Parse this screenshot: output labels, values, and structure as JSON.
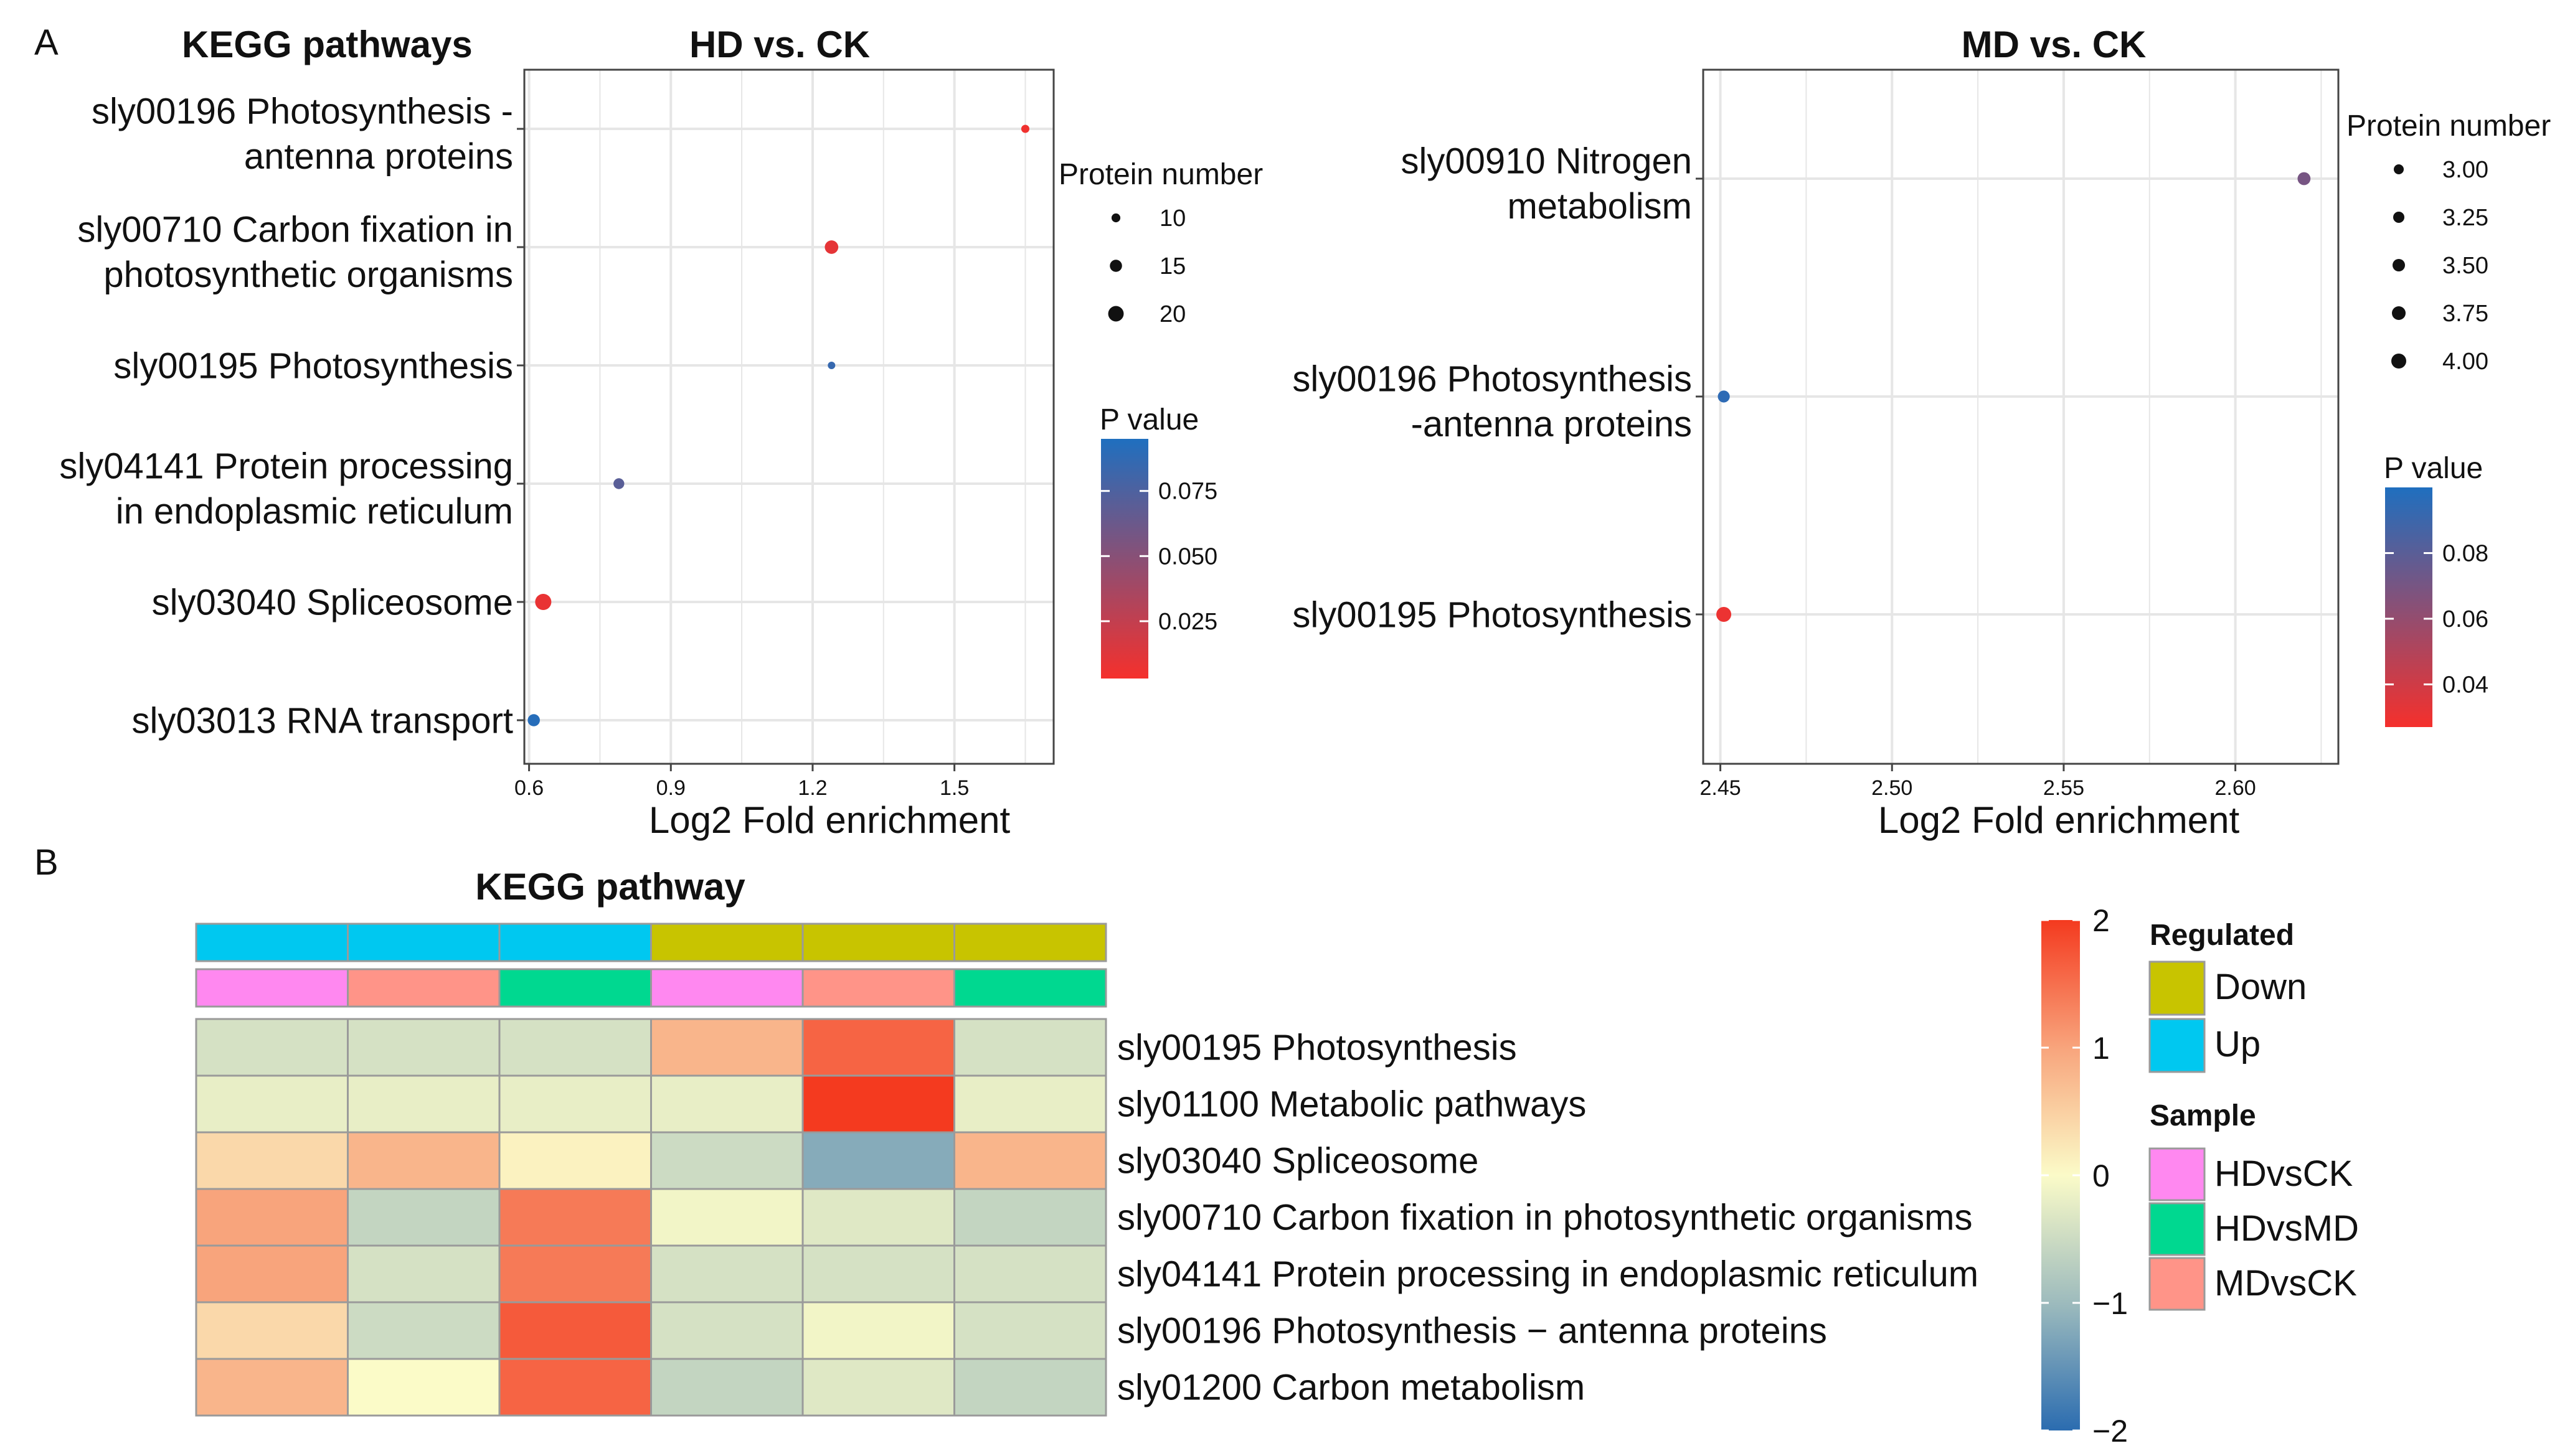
{
  "colors": {
    "p_low": "#f5302c",
    "p_high": "#1f6fbf",
    "heat_low": "#2b6cb0",
    "heat_mid": "#fbfbc8",
    "heat_high": "#f43a1f",
    "regulated_down": "#c8c400",
    "regulated_up": "#00c8f0",
    "sample_hdvsck": "#ff88f0",
    "sample_hdvsmd": "#00d890",
    "sample_mdvsck": "#ff9488",
    "grid": "#e6e6e6"
  },
  "panel_labels": {
    "a": "A",
    "b": "B"
  },
  "chart_data": [
    {
      "type": "scatter",
      "panel": "A",
      "header": "KEGG pathways",
      "title": "HD vs. CK",
      "xlabel": "Log2 Fold enrichment",
      "xlim": [
        0.59,
        1.71
      ],
      "xticks": [
        0.6,
        0.9,
        1.2,
        1.5
      ],
      "xtick_labels": [
        "0.6",
        "0.9",
        "1.2",
        "1.5"
      ],
      "categories": [
        [
          "sly00196 Photosynthesis -",
          "antenna proteins"
        ],
        [
          "sly00710 Carbon fixation in",
          "photosynthetic organisms"
        ],
        [
          "sly00195 Photosynthesis"
        ],
        [
          "sly04141 Protein processing",
          "in endoplasmic reticulum"
        ],
        [
          "sly03040 Spliceosome"
        ],
        [
          "sly03013 RNA transport"
        ]
      ],
      "points": [
        {
          "category": 0,
          "x": 1.65,
          "protein_number": 9,
          "p_value": 0.005
        },
        {
          "category": 1,
          "x": 1.24,
          "protein_number": 17,
          "p_value": 0.01
        },
        {
          "category": 2,
          "x": 1.24,
          "protein_number": 8,
          "p_value": 0.085
        },
        {
          "category": 3,
          "x": 0.79,
          "protein_number": 13,
          "p_value": 0.07
        },
        {
          "category": 4,
          "x": 0.63,
          "protein_number": 21,
          "p_value": 0.008
        },
        {
          "category": 5,
          "x": 0.61,
          "protein_number": 15,
          "p_value": 0.092
        }
      ],
      "size_legend": {
        "title": "Protein number",
        "values": [
          10,
          15,
          20
        ],
        "labels": [
          "10",
          "15",
          "20"
        ],
        "range": [
          8,
          21
        ]
      },
      "color_legend": {
        "title": "P value",
        "ticks": [
          0.075,
          0.05,
          0.025
        ],
        "tick_labels": [
          "0.075",
          "0.050",
          "0.025"
        ],
        "range": [
          0.003,
          0.095
        ]
      }
    },
    {
      "type": "scatter",
      "panel": "A",
      "title": "MD  vs. CK",
      "xlabel": "Log2 Fold enrichment",
      "xlim": [
        2.445,
        2.63
      ],
      "xticks": [
        2.45,
        2.5,
        2.55,
        2.6
      ],
      "xtick_labels": [
        "2.45",
        "2.50",
        "2.55",
        "2.60"
      ],
      "categories": [
        [
          "sly00910 Nitrogen",
          "metabolism"
        ],
        [
          "sly00196 Photosynthesis",
          "-antenna proteins"
        ],
        [
          "sly00195 Photosynthesis"
        ]
      ],
      "points": [
        {
          "category": 0,
          "x": 2.62,
          "protein_number": 3.6,
          "p_value": 0.07
        },
        {
          "category": 1,
          "x": 2.451,
          "protein_number": 3.4,
          "p_value": 0.095
        },
        {
          "category": 2,
          "x": 2.451,
          "protein_number": 4.0,
          "p_value": 0.03
        }
      ],
      "size_legend": {
        "title": "Protein number",
        "values": [
          3.0,
          3.25,
          3.5,
          3.75,
          4.0
        ],
        "labels": [
          "3.00",
          "3.25",
          "3.50",
          "3.75",
          "4.00"
        ],
        "range": [
          3.0,
          4.0
        ]
      },
      "color_legend": {
        "title": "P value",
        "ticks": [
          0.08,
          0.06,
          0.04
        ],
        "tick_labels": [
          "0.08",
          "0.06",
          "0.04"
        ],
        "range": [
          0.027,
          0.1
        ]
      }
    },
    {
      "type": "heatmap",
      "panel": "B",
      "title": "KEGG pathway",
      "columns": [
        {
          "regulated": "Up",
          "sample": "HDvsCK"
        },
        {
          "regulated": "Up",
          "sample": "MDvsCK"
        },
        {
          "regulated": "Up",
          "sample": "HDvsMD"
        },
        {
          "regulated": "Down",
          "sample": "HDvsCK"
        },
        {
          "regulated": "Down",
          "sample": "MDvsCK"
        },
        {
          "regulated": "Down",
          "sample": "HDvsMD"
        }
      ],
      "rows": [
        "sly00195 Photosynthesis",
        "sly01100 Metabolic pathways",
        "sly03040 Spliceosome",
        "sly00710 Carbon fixation in photosynthetic organisms",
        "sly04141 Protein processing in endoplasmic reticulum",
        "sly00196 Photosynthesis − antenna proteins",
        "sly01200 Carbon metabolism"
      ],
      "values": [
        [
          -0.4,
          -0.4,
          -0.4,
          0.8,
          1.6,
          -0.4
        ],
        [
          -0.2,
          -0.2,
          -0.2,
          -0.2,
          2.0,
          -0.2
        ],
        [
          0.4,
          0.8,
          0.1,
          -0.5,
          -1.2,
          0.8
        ],
        [
          1.0,
          -0.6,
          1.4,
          -0.1,
          -0.3,
          -0.6
        ],
        [
          1.0,
          -0.4,
          1.4,
          -0.4,
          -0.4,
          -0.4
        ],
        [
          0.4,
          -0.5,
          1.7,
          -0.4,
          -0.1,
          -0.4
        ],
        [
          0.8,
          0.0,
          1.6,
          -0.6,
          -0.3,
          -0.6
        ]
      ],
      "scale": {
        "min": -2,
        "max": 2,
        "ticks": [
          2,
          1,
          0,
          -1,
          -2
        ],
        "tick_labels": [
          "2",
          "1",
          "0",
          "−1",
          "−2"
        ]
      },
      "legend_regulated": {
        "title": "Regulated",
        "items": [
          "Down",
          "Up"
        ]
      },
      "legend_sample": {
        "title": "Sample",
        "items": [
          "HDvsCK",
          "HDvsMD",
          "MDvsCK"
        ]
      }
    }
  ]
}
